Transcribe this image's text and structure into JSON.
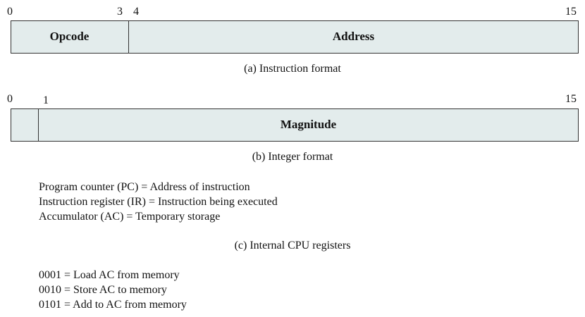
{
  "instruction_format": {
    "bit_labels": [
      "0",
      "3",
      "4",
      "15"
    ],
    "fields": [
      "Opcode",
      "Address"
    ],
    "caption": "(a) Instruction format"
  },
  "integer_format": {
    "bit_labels": [
      "0",
      "1",
      "15"
    ],
    "fields": [
      "",
      "Magnitude"
    ],
    "caption": "(b) Integer format"
  },
  "registers": {
    "lines": [
      "Program counter (PC) = Address of instruction",
      "Instruction register (IR) = Instruction being executed",
      "Accumulator (AC) = Temporary storage"
    ],
    "caption": "(c) Internal CPU registers"
  },
  "opcodes": {
    "lines": [
      "0001 = Load AC from memory",
      "0010 = Store AC to memory",
      "0101 = Add to AC from memory"
    ]
  },
  "colors": {
    "box_fill": "#e3ecec",
    "box_border": "#333333"
  }
}
